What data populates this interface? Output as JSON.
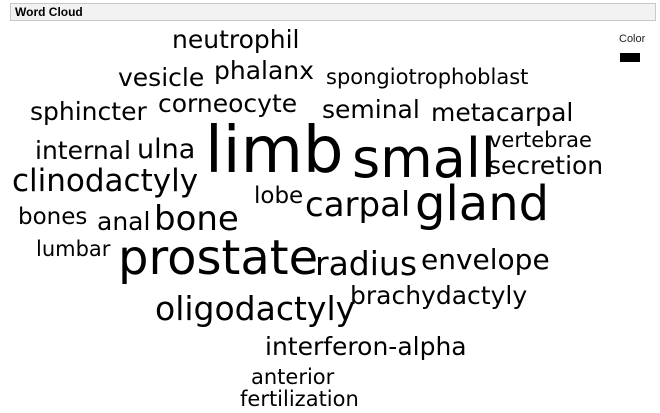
{
  "panel": {
    "title": "Word Cloud"
  },
  "legend": {
    "title": "Color",
    "swatch_color": "#000000"
  },
  "words": [
    {
      "text": "neutrophil"
    },
    {
      "text": "phalanx"
    },
    {
      "text": "vesicle"
    },
    {
      "text": "spongiotrophoblast"
    },
    {
      "text": "sphincter"
    },
    {
      "text": "corneocyte"
    },
    {
      "text": "seminal"
    },
    {
      "text": "metacarpal"
    },
    {
      "text": "internal"
    },
    {
      "text": "ulna"
    },
    {
      "text": "limb"
    },
    {
      "text": "small"
    },
    {
      "text": "vertebrae"
    },
    {
      "text": "secretion"
    },
    {
      "text": "clinodactyly"
    },
    {
      "text": "lobe"
    },
    {
      "text": "carpal"
    },
    {
      "text": "gland"
    },
    {
      "text": "bones"
    },
    {
      "text": "anal"
    },
    {
      "text": "bone"
    },
    {
      "text": "lumbar"
    },
    {
      "text": "prostate"
    },
    {
      "text": "radius"
    },
    {
      "text": "envelope"
    },
    {
      "text": "brachydactyly"
    },
    {
      "text": "oligodactyly"
    },
    {
      "text": "interferon-alpha"
    },
    {
      "text": "anterior"
    },
    {
      "text": "fertilization"
    }
  ]
}
